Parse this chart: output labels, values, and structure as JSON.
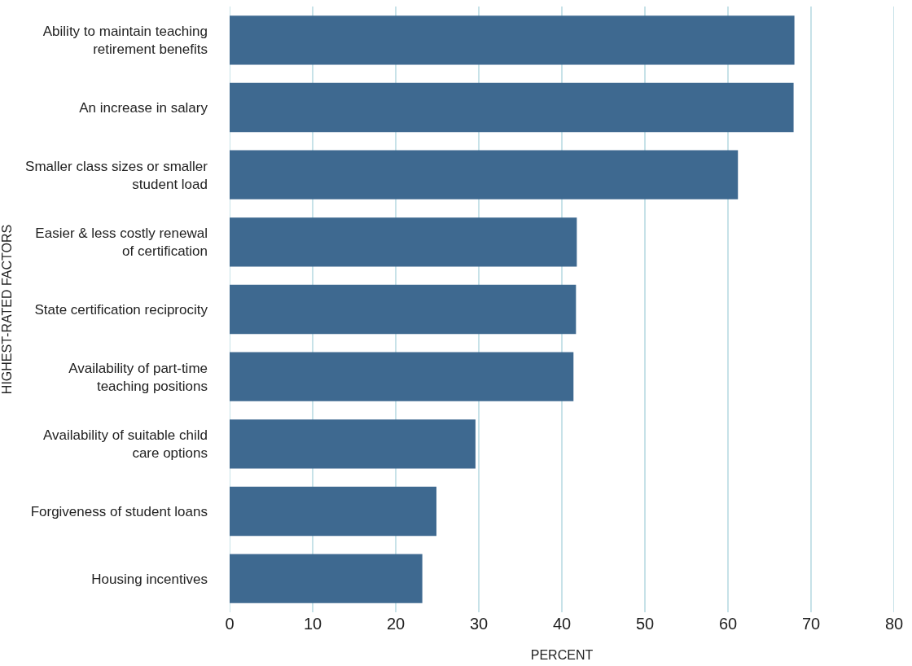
{
  "chart_data": {
    "type": "bar",
    "orientation": "horizontal",
    "xlabel": "PERCENT",
    "ylabel": "HIGHEST-RATED FACTORS",
    "categories": [
      "Ability to maintain teaching\nretirement benefits",
      "An increase in salary",
      "Smaller class sizes or smaller\nstudent load",
      "Easier & less costly renewal\nof certification",
      "State certification reciprocity",
      "Availability of part-time\nteaching positions",
      "Availability of suitable child\ncare options",
      "Forgiveness of student loans",
      "Housing incentives"
    ],
    "values": [
      68,
      67.9,
      61.2,
      41.8,
      41.7,
      41.4,
      29.6,
      24.9,
      23.2
    ],
    "color": "#3e6990",
    "xlim": [
      0,
      80
    ],
    "xticks": [
      0,
      10,
      20,
      30,
      40,
      50,
      60,
      70,
      80
    ],
    "grid": "x"
  }
}
